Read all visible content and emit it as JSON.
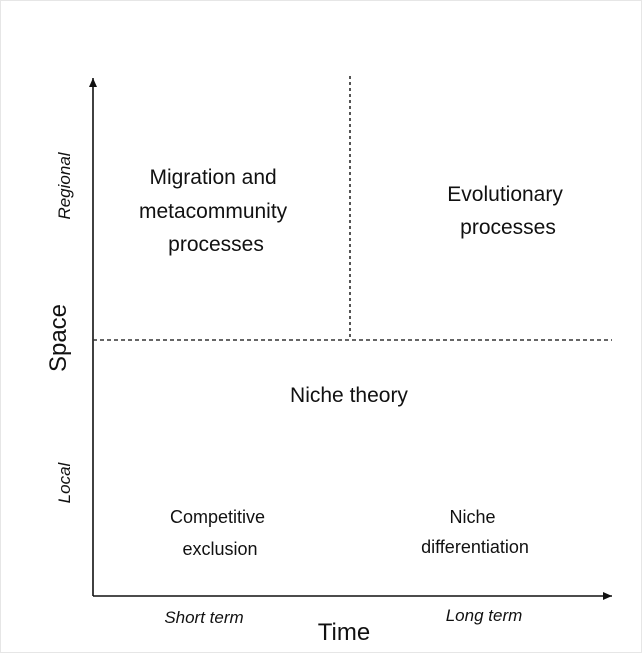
{
  "axes": {
    "x_title": "Time",
    "y_title": "Space",
    "x_ticks": [
      "Short term",
      "Long term"
    ],
    "y_ticks": [
      "Regional",
      "Local"
    ]
  },
  "regions": {
    "top_left": [
      "Migration and",
      "metacommunity",
      "processes"
    ],
    "top_right": [
      "Evolutionary",
      "processes"
    ],
    "middle": "Niche theory",
    "bottom_left": [
      "Competitive",
      "exclusion"
    ],
    "bottom_right": [
      "Niche",
      "differentiation"
    ]
  }
}
